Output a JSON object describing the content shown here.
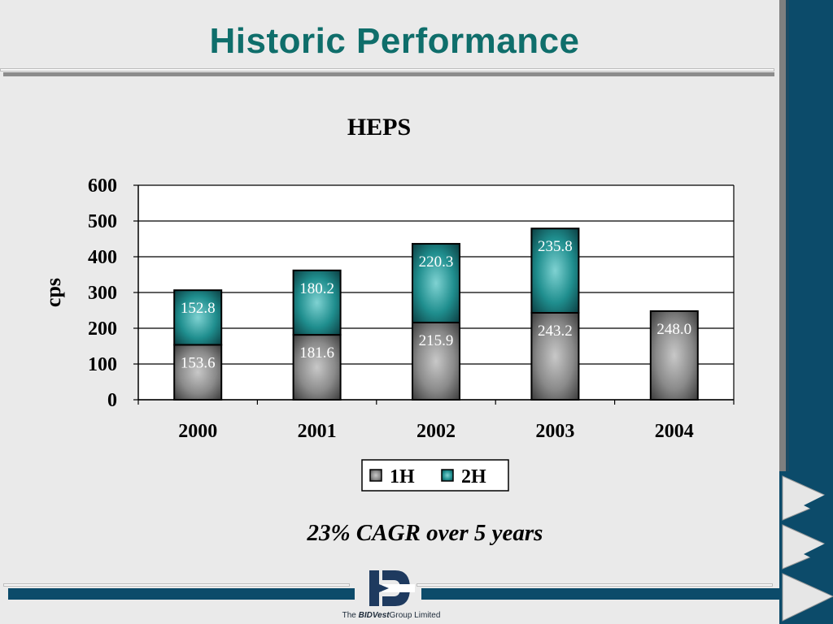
{
  "slide": {
    "title": "Historic Performance",
    "subtitle": "23% CAGR over 5 years",
    "footer": {
      "prefix": "The",
      "brand": "BIDVest",
      "suffix": "Group Limited"
    }
  },
  "colors": {
    "title": "#0f6e6b",
    "series_1h": "#808080",
    "series_2h": "#1f8e8e",
    "brand_blue": "#0c4b6a"
  },
  "chart_data": {
    "type": "bar",
    "stacked": true,
    "title": "HEPS",
    "xlabel": "",
    "ylabel": "cps",
    "categories": [
      "2000",
      "2001",
      "2002",
      "2003",
      "2004"
    ],
    "series": [
      {
        "name": "1H",
        "values": [
          153.6,
          181.6,
          215.9,
          243.2,
          248.0
        ],
        "labels": [
          "153.6",
          "181.6",
          "215.9",
          "243.2",
          "248.0"
        ]
      },
      {
        "name": "2H",
        "values": [
          152.8,
          180.2,
          220.3,
          235.8,
          null
        ],
        "labels": [
          "152.8",
          "180.2",
          "220.3",
          "235.8",
          ""
        ]
      }
    ],
    "ylim": [
      0,
      600
    ],
    "yticks": [
      "0",
      "100",
      "200",
      "300",
      "400",
      "500",
      "600"
    ],
    "grid": true,
    "legend_position": "bottom"
  }
}
